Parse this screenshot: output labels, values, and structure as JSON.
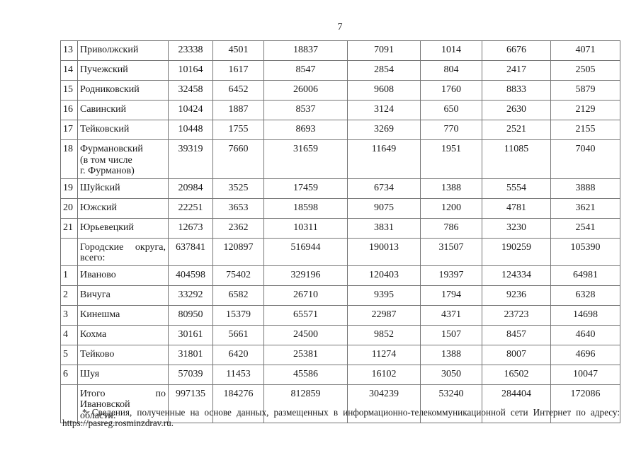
{
  "page": {
    "number": "7"
  },
  "footnote": {
    "marker": "*",
    "text": "Сведения, полученные на основе данных, размещенных в информационно-телекоммуникационной сети Интернет по адресу:",
    "url": "https://pasreg.rosminzdrav.ru."
  },
  "colors": {
    "table_border": "#757575",
    "text": "#1a1a1a",
    "background": "#ffffff"
  },
  "table": {
    "rows": [
      {
        "num": "13",
        "name": "Приволжский",
        "values": [
          "23338",
          "4501",
          "18837",
          "7091",
          "1014",
          "6676",
          "4071"
        ]
      },
      {
        "num": "14",
        "name": "Пучежский",
        "values": [
          "10164",
          "1617",
          "8547",
          "2854",
          "804",
          "2417",
          "2505"
        ]
      },
      {
        "num": "15",
        "name": "Родниковский",
        "values": [
          "32458",
          "6452",
          "26006",
          "9608",
          "1760",
          "8833",
          "5879"
        ]
      },
      {
        "num": "16",
        "name": "Савинский",
        "values": [
          "10424",
          "1887",
          "8537",
          "3124",
          "650",
          "2630",
          "2129"
        ]
      },
      {
        "num": "17",
        "name": "Тейковский",
        "values": [
          "10448",
          "1755",
          "8693",
          "3269",
          "770",
          "2521",
          "2155"
        ]
      },
      {
        "num": "18",
        "name": "Фурмановский\n(в том числе\nг. Фурманов)",
        "values": [
          "39319",
          "7660",
          "31659",
          "11649",
          "1951",
          "11085",
          "7040"
        ]
      },
      {
        "num": "19",
        "name": "Шуйский",
        "values": [
          "20984",
          "3525",
          "17459",
          "6734",
          "1388",
          "5554",
          "3888"
        ]
      },
      {
        "num": "20",
        "name": "Южский",
        "values": [
          "22251",
          "3653",
          "18598",
          "9075",
          "1200",
          "4781",
          "3621"
        ]
      },
      {
        "num": "21",
        "name": "Юрьевецкий",
        "values": [
          "12673",
          "2362",
          "10311",
          "3831",
          "786",
          "3230",
          "2541"
        ]
      },
      {
        "num": "",
        "name": "Городские округа,\nвсего:",
        "name_justify": true,
        "values": [
          "637841",
          "120897",
          "516944",
          "190013",
          "31507",
          "190259",
          "105390"
        ]
      },
      {
        "num": "1",
        "name": "Иваново",
        "values": [
          "404598",
          "75402",
          "329196",
          "120403",
          "19397",
          "124334",
          "64981"
        ]
      },
      {
        "num": "2",
        "name": "Вичуга",
        "values": [
          "33292",
          "6582",
          "26710",
          "9395",
          "1794",
          "9236",
          "6328"
        ]
      },
      {
        "num": "3",
        "name": "Кинешма",
        "values": [
          "80950",
          "15379",
          "65571",
          "22987",
          "4371",
          "23723",
          "14698"
        ]
      },
      {
        "num": "4",
        "name": "Кохма",
        "values": [
          "30161",
          "5661",
          "24500",
          "9852",
          "1507",
          "8457",
          "4640"
        ]
      },
      {
        "num": "5",
        "name": "Тейково",
        "values": [
          "31801",
          "6420",
          "25381",
          "11274",
          "1388",
          "8007",
          "4696"
        ]
      },
      {
        "num": "6",
        "name": "Шуя",
        "values": [
          "57039",
          "11453",
          "45586",
          "16102",
          "3050",
          "16502",
          "10047"
        ]
      },
      {
        "num": "",
        "name": "Итого по\nИвановской области:",
        "name_justify": true,
        "values": [
          "997135",
          "184276",
          "812859",
          "304239",
          "53240",
          "284404",
          "172086"
        ]
      }
    ]
  }
}
